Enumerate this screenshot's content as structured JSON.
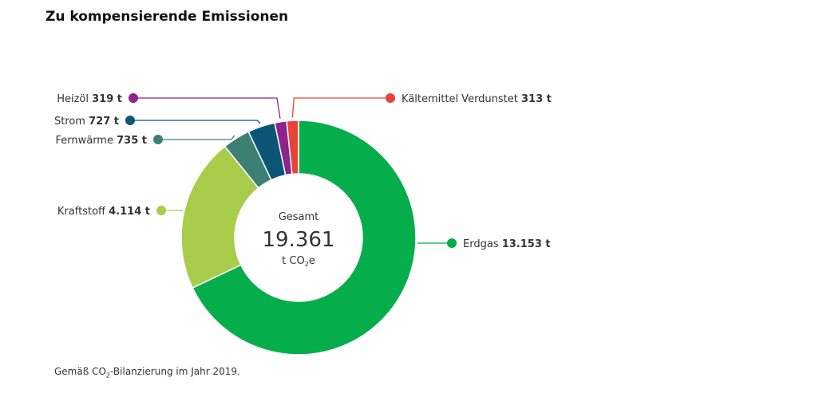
{
  "title": "Zu kompensierende Emissionen",
  "footnote": {
    "before": "Gemäß CO",
    "subscript": "2",
    "after": "-Bilanzierung im Jahr 2019."
  },
  "chart_data": {
    "type": "pie",
    "donut": true,
    "title": "Zu kompensierende Emissionen",
    "center": {
      "label": "Gesamt",
      "value": "19.361",
      "unit_before": "t CO",
      "unit_subscript": "2",
      "unit_after": "e"
    },
    "unit": "t",
    "slices": [
      {
        "name": "Erdgas",
        "value": 13153,
        "value_label": "13.153 t",
        "color": "#05ad4b"
      },
      {
        "name": "Kraftstoff",
        "value": 4114,
        "value_label": "4.114 t",
        "color": "#a7cd4a"
      },
      {
        "name": "Fernwärme",
        "value": 735,
        "value_label": "735 t",
        "color": "#3b8073"
      },
      {
        "name": "Strom",
        "value": 727,
        "value_label": "727 t",
        "color": "#0b5676"
      },
      {
        "name": "Heizöl",
        "value": 319,
        "value_label": "319 t",
        "color": "#8d238c"
      },
      {
        "name": "Kältemittel Verdunstet",
        "value": 313,
        "value_label": "313 t",
        "color": "#eb4337"
      }
    ],
    "legend": "callouts"
  }
}
